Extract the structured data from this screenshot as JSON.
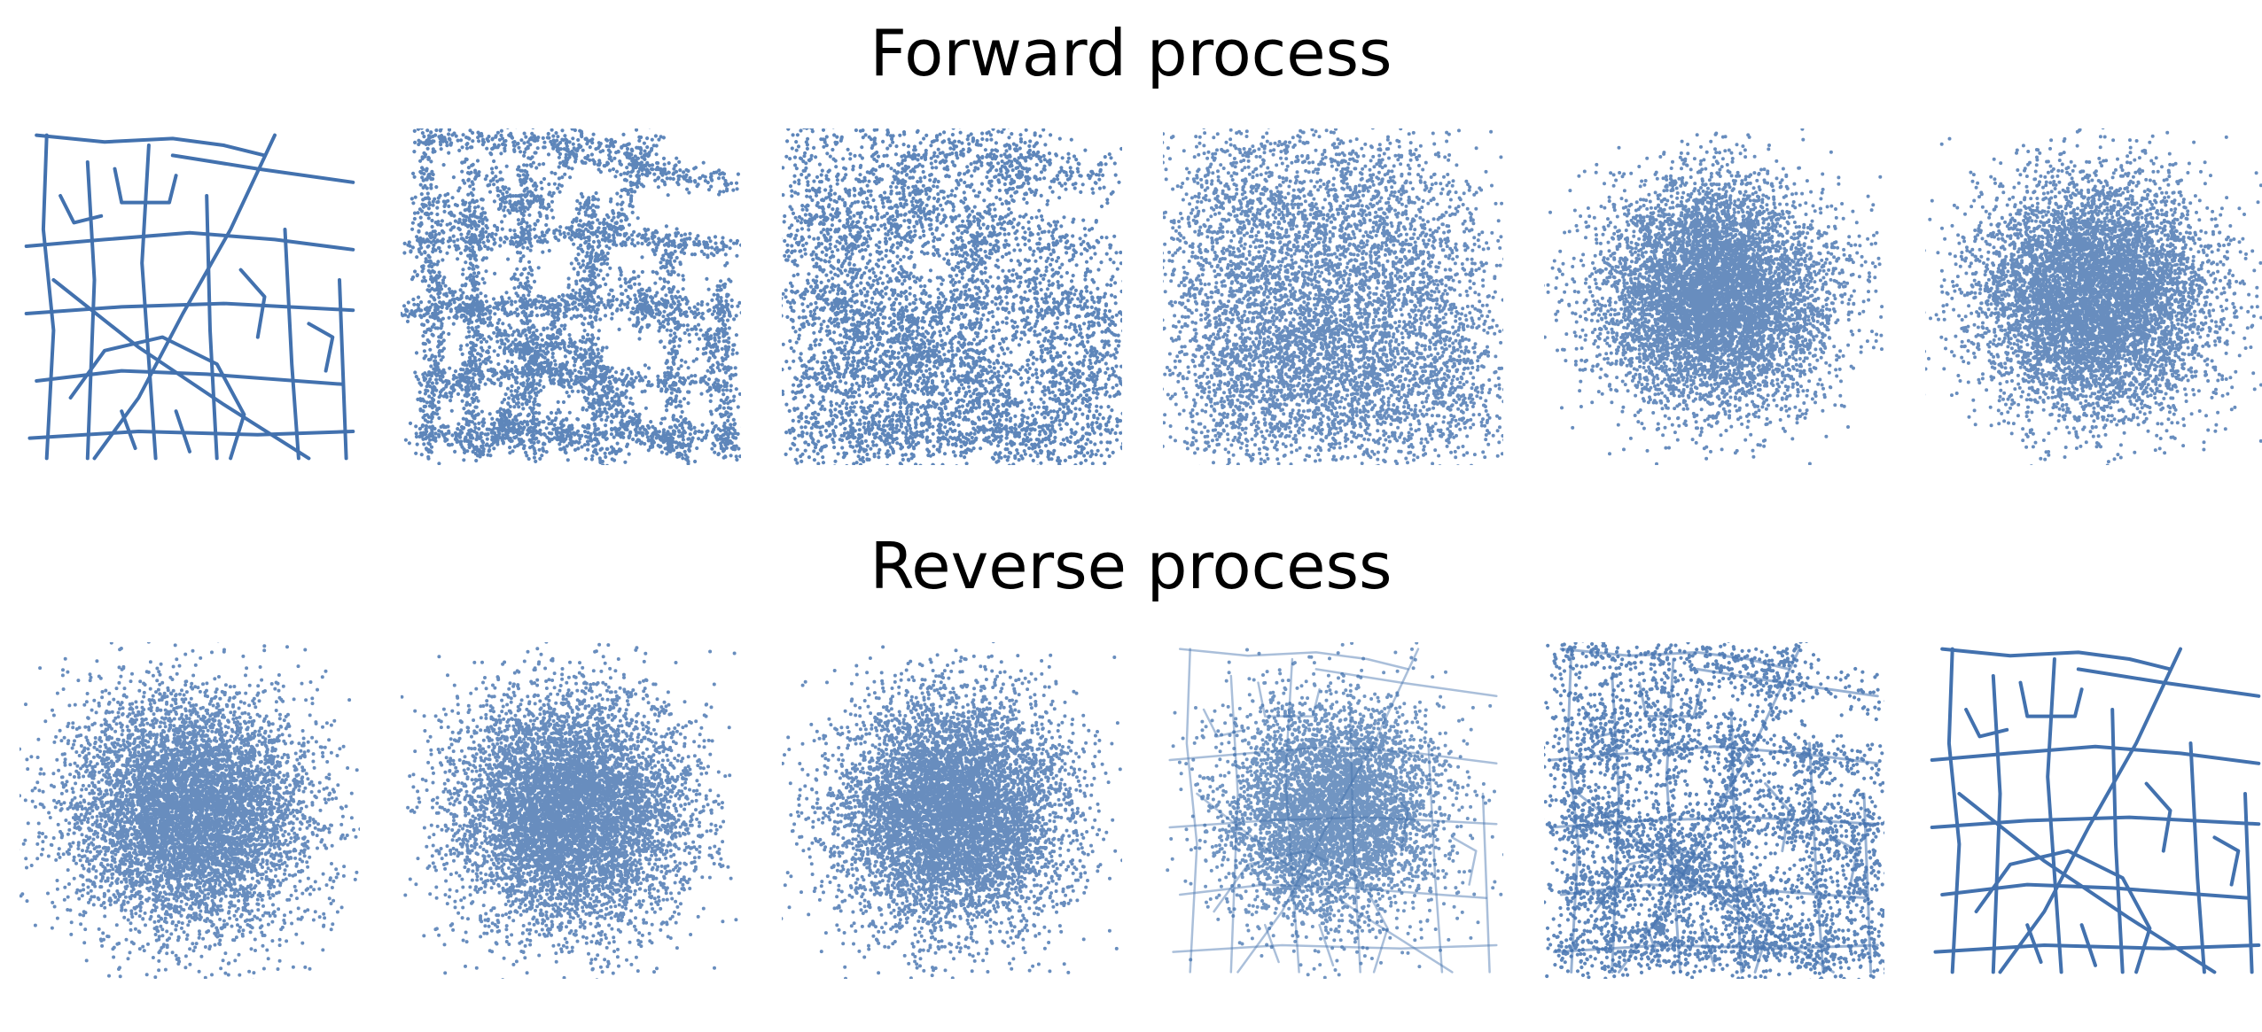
{
  "figure": {
    "point_color": "#4271ae",
    "background_color": "#ffffff",
    "forward": {
      "title": "Forward process",
      "panels": [
        {
          "kind": "road_network",
          "noise": 0.0
        },
        {
          "kind": "noisy_network",
          "noise": 0.08
        },
        {
          "kind": "noisy_network",
          "noise": 0.2
        },
        {
          "kind": "blob",
          "noise": 0.55
        },
        {
          "kind": "gaussian",
          "noise": 0.85
        },
        {
          "kind": "gaussian",
          "noise": 1.0
        }
      ]
    },
    "reverse": {
      "title": "Reverse process",
      "panels": [
        {
          "kind": "gaussian",
          "noise": 1.0
        },
        {
          "kind": "gaussian",
          "noise": 0.97
        },
        {
          "kind": "gaussian",
          "noise": 0.93
        },
        {
          "kind": "emerging_curves",
          "noise": 0.55
        },
        {
          "kind": "tangled_network",
          "noise": 0.15
        },
        {
          "kind": "road_network",
          "noise": 0.0
        }
      ]
    }
  }
}
